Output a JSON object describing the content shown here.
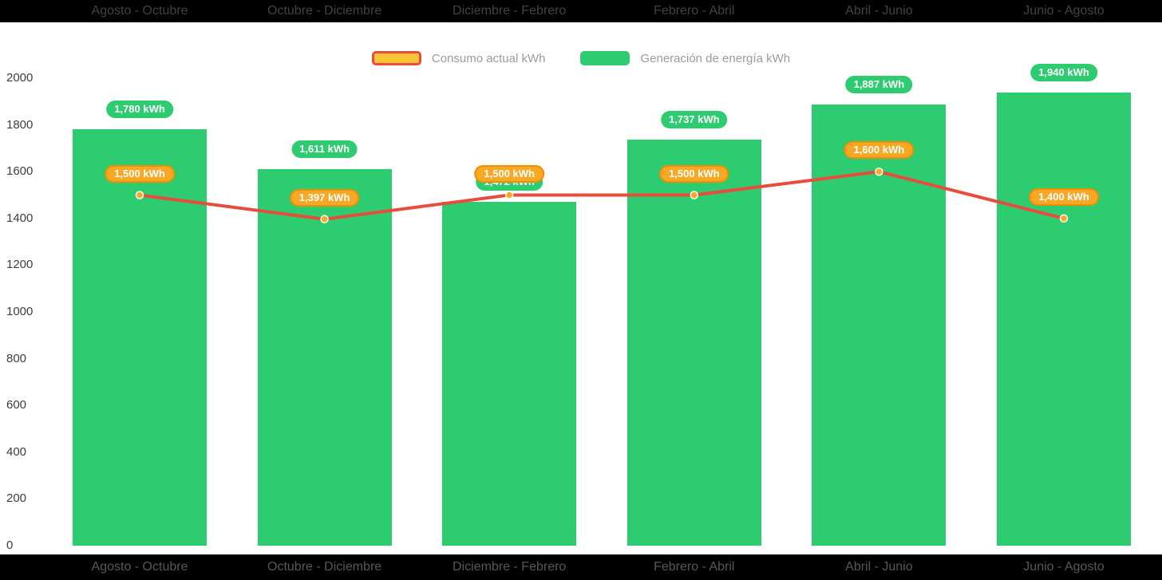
{
  "colors": {
    "background": "#000000",
    "panel": "#ffffff",
    "bar": "#2ECC71",
    "line": "#E84C3D",
    "marker": "#F9A825",
    "marker_ring": "#FFFFFF",
    "bar_label_bg": "#2ECC71",
    "line_label_bg": "#F9A825",
    "line_label_border": "#EF8E00",
    "legend_consumo_fill": "#FBC437",
    "legend_consumo_border": "#E84C3D",
    "legend_text": "#9B9B9B",
    "axis_text": "#3D3D3D",
    "category_text": "#585858"
  },
  "legend": {
    "items": [
      {
        "label": "Consumo actual kWh"
      },
      {
        "label": "Generación de energía kWh"
      }
    ]
  },
  "chart_data": {
    "type": "bar+line",
    "title": "",
    "categories": [
      "Agosto - Octubre",
      "Octubre - Diciembre",
      "Diciembre - Febrero",
      "Febrero - Abril",
      "Abril - Junio",
      "Junio - Agosto"
    ],
    "series": [
      {
        "name": "Generación de energía kWh",
        "type": "bar",
        "color": "#2ECC71",
        "values": [
          1780,
          1611,
          1472,
          1737,
          1887,
          1940
        ],
        "data_labels": [
          "1,780 kWh",
          "1,611 kWh",
          "1,472 kWh",
          "1,737 kWh",
          "1,887 kWh",
          "1,940 kWh"
        ]
      },
      {
        "name": "Consumo actual kWh",
        "type": "line",
        "color": "#E84C3D",
        "values": [
          1500,
          1397,
          1500,
          1500,
          1600,
          1400
        ],
        "data_labels": [
          "1,500 kWh",
          "1,397 kWh",
          "1,500 kWh",
          "1,500 kWh",
          "1,600 kWh",
          "1,400 kWh"
        ]
      }
    ],
    "y_axis": {
      "min": 0,
      "max": 2000,
      "step": 200,
      "tick_labels": [
        "0",
        "200",
        "400",
        "600",
        "800",
        "1000",
        "1200",
        "1400",
        "1600",
        "1800",
        "2000"
      ]
    },
    "grid": false,
    "legend_position": "top-center",
    "category_labels_shown_top_and_bottom": true
  }
}
